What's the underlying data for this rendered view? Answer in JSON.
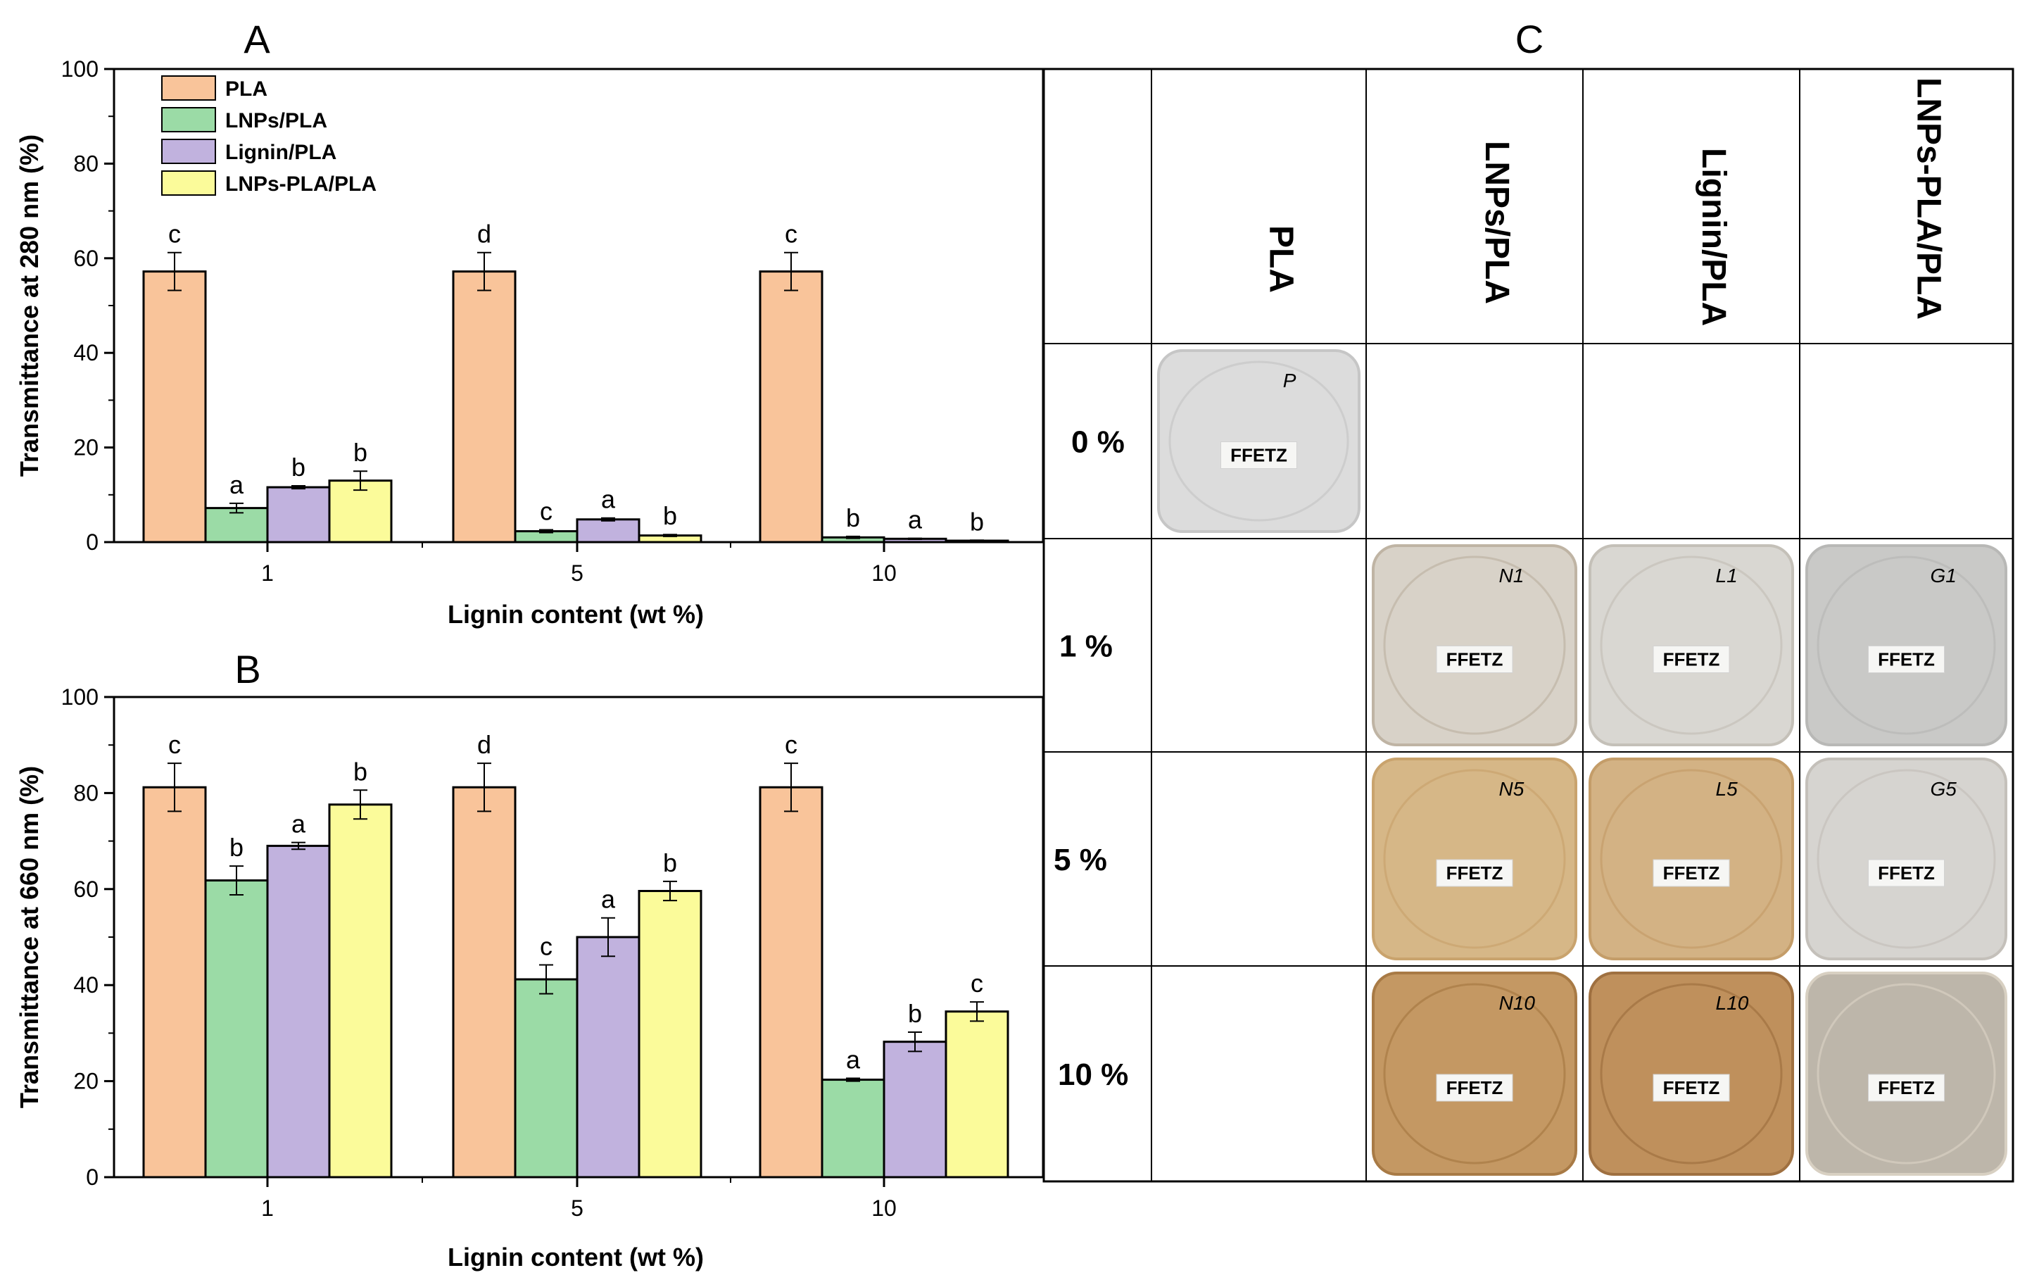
{
  "colors": {
    "PLA": "#f9c49a",
    "LNPs/PLA": "#9bdba6",
    "Lignin/PLA": "#c1b2de",
    "LNPs-PLA/PLA": "#fbfb9a"
  },
  "chart_data": [
    {
      "panel": "A",
      "type": "bar",
      "title": "A",
      "xlabel": "Lignin content (wt %)",
      "ylabel": "Transmittance at 280 nm (%)",
      "ylim": [
        0,
        100
      ],
      "yticks": [
        "0",
        "20",
        "40",
        "60",
        "80",
        "100"
      ],
      "categories": [
        "1",
        "5",
        "10"
      ],
      "legend": "top-left",
      "series": [
        {
          "name": "PLA",
          "values": [
            57.2,
            57.2,
            57.2
          ],
          "errors": [
            4,
            4,
            4
          ],
          "letters": [
            "c",
            "d",
            "c"
          ]
        },
        {
          "name": "LNPs/PLA",
          "values": [
            7.2,
            2.3,
            1.0
          ],
          "errors": [
            1,
            0.3,
            0.2
          ],
          "letters": [
            "a",
            "c",
            "b"
          ]
        },
        {
          "name": "Lignin/PLA",
          "values": [
            11.6,
            4.8,
            0.7
          ],
          "errors": [
            0.3,
            0.3,
            0.1
          ],
          "letters": [
            "b",
            "a",
            "a"
          ]
        },
        {
          "name": "LNPs-PLA/PLA",
          "values": [
            13.0,
            1.4,
            0.3
          ],
          "errors": [
            2,
            0.2,
            0.1
          ],
          "letters": [
            "b",
            "b",
            "b"
          ]
        }
      ]
    },
    {
      "panel": "B",
      "type": "bar",
      "title": "B",
      "xlabel": "Lignin content (wt %)",
      "ylabel": "Transmittance at 660 nm (%)",
      "ylim": [
        0,
        100
      ],
      "yticks": [
        "0",
        "20",
        "40",
        "60",
        "80",
        "100"
      ],
      "categories": [
        "1",
        "5",
        "10"
      ],
      "series": [
        {
          "name": "PLA",
          "values": [
            81.2,
            81.2,
            81.2
          ],
          "errors": [
            5,
            5,
            5
          ],
          "letters": [
            "c",
            "d",
            "c"
          ]
        },
        {
          "name": "LNPs/PLA",
          "values": [
            61.8,
            41.2,
            20.3
          ],
          "errors": [
            3,
            3,
            0.3
          ],
          "letters": [
            "b",
            "c",
            "a"
          ]
        },
        {
          "name": "Lignin/PLA",
          "values": [
            69.0,
            50.0,
            28.2
          ],
          "errors": [
            0.7,
            4,
            2
          ],
          "letters": [
            "a",
            "a",
            "b"
          ]
        },
        {
          "name": "LNPs-PLA/PLA",
          "values": [
            77.6,
            59.6,
            34.5
          ],
          "errors": [
            3,
            2,
            2
          ],
          "letters": [
            "b",
            "b",
            "c"
          ]
        }
      ]
    }
  ],
  "panel_c": {
    "title": "C",
    "columns": [
      "PLA",
      "LNPs/PLA",
      "Lignin/PLA",
      "LNPs-PLA/PLA"
    ],
    "rows": [
      "0 %",
      "1 %",
      "5 %",
      "10 %"
    ],
    "film_label": "FFETZ",
    "films": [
      {
        "row": 0,
        "col": 0,
        "mark": "P",
        "color": "#dcdcdc",
        "edge": "#c6c6c6"
      },
      {
        "row": 1,
        "col": 1,
        "mark": "N1",
        "color": "#d8d2c8",
        "edge": "#bfb4a4"
      },
      {
        "row": 1,
        "col": 2,
        "mark": "L1",
        "color": "#d9d7d2",
        "edge": "#c4c0b8"
      },
      {
        "row": 1,
        "col": 3,
        "mark": "G1",
        "color": "#c9c9c7",
        "edge": "#b8b8b6"
      },
      {
        "row": 2,
        "col": 1,
        "mark": "N5",
        "color": "#d6b787",
        "edge": "#c9a36d"
      },
      {
        "row": 2,
        "col": 2,
        "mark": "L5",
        "color": "#d3b284",
        "edge": "#c49d69"
      },
      {
        "row": 2,
        "col": 3,
        "mark": "G5",
        "color": "#d6d4d0",
        "edge": "#c4c0ba"
      },
      {
        "row": 3,
        "col": 1,
        "mark": "N10",
        "color": "#c49863",
        "edge": "#a87a45"
      },
      {
        "row": 3,
        "col": 2,
        "mark": "L10",
        "color": "#bf905c",
        "edge": "#9f7040"
      },
      {
        "row": 3,
        "col": 3,
        "mark": "",
        "color": "#bdb6aa",
        "edge": "#d8d0c2"
      }
    ]
  }
}
